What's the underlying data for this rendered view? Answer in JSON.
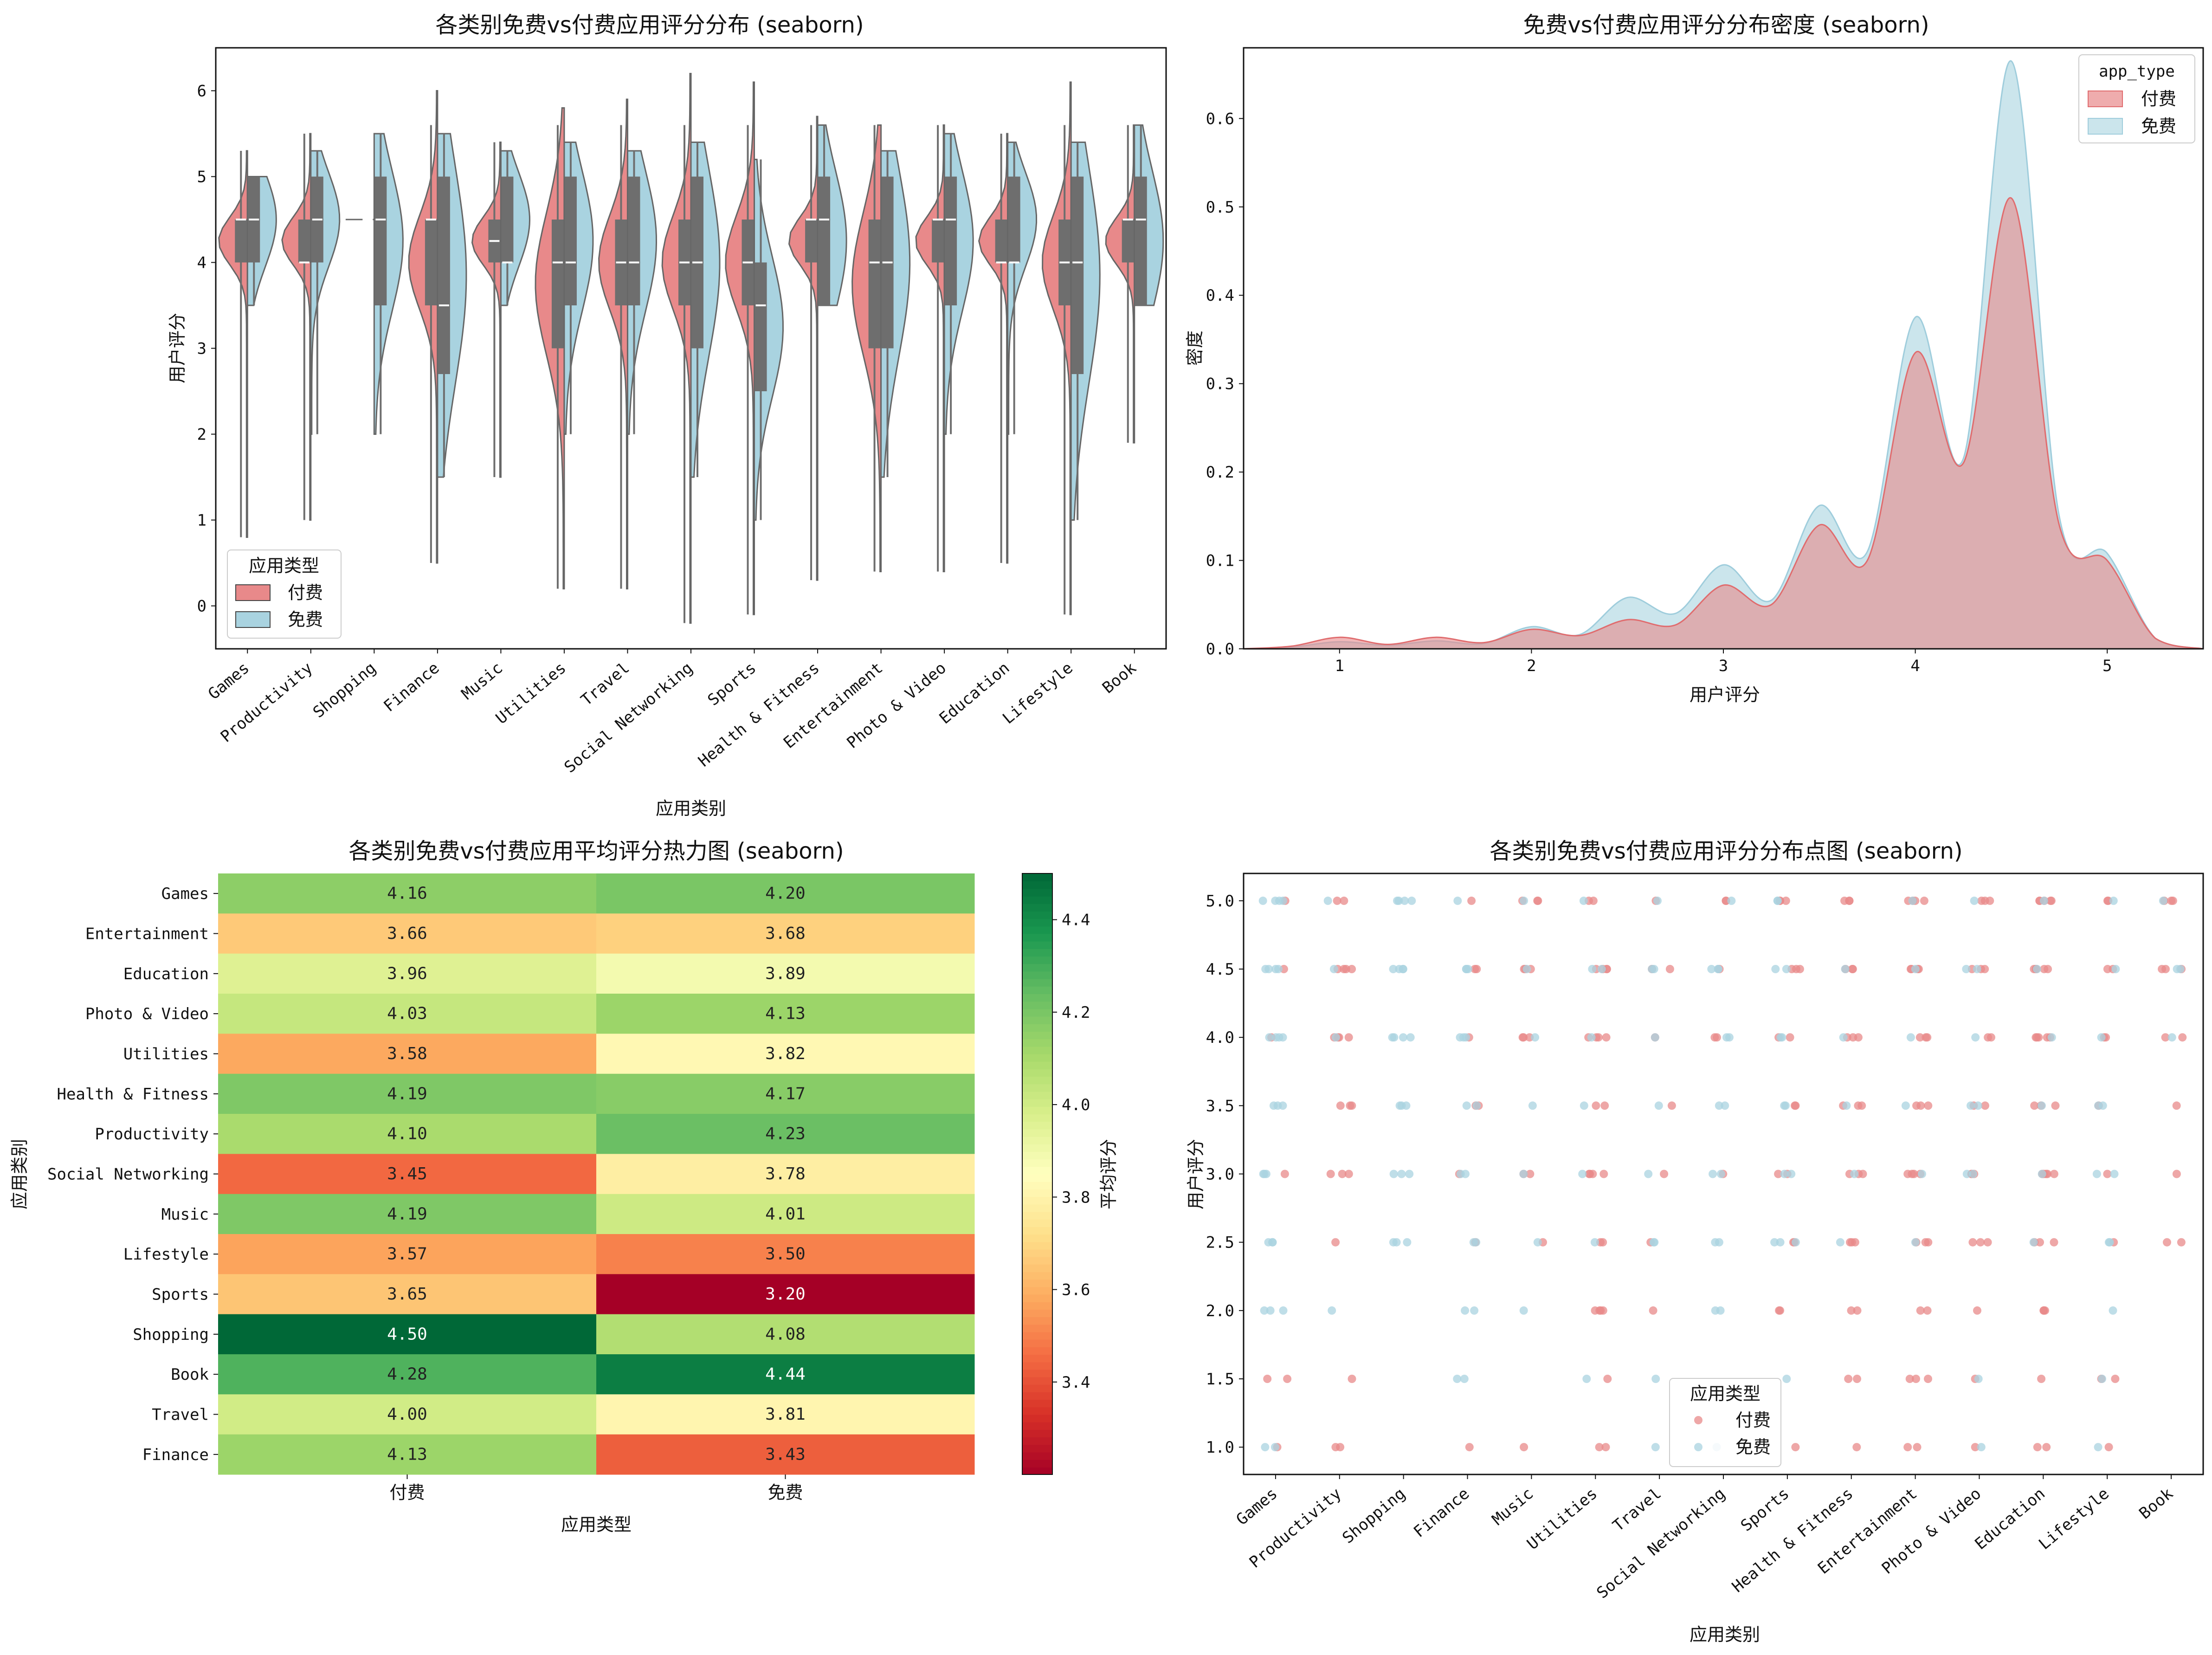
{
  "chart_data": [
    {
      "type": "violin",
      "title": "各类别免费vs付费应用评分分布 (seaborn)",
      "xlabel": "应用类别",
      "ylabel": "用户评分",
      "ylim": [
        -0.5,
        6.5
      ],
      "yticks": [
        0,
        1,
        2,
        3,
        4,
        5,
        6
      ],
      "categories": [
        "Games",
        "Productivity",
        "Shopping",
        "Finance",
        "Music",
        "Utilities",
        "Travel",
        "Social Networking",
        "Sports",
        "Health & Fitness",
        "Entertainment",
        "Photo & Video",
        "Education",
        "Lifestyle",
        "Book"
      ],
      "legend_title": "应用类型",
      "legend_position": "lower-left",
      "series": [
        {
          "name": "付费",
          "color": "#e8898a",
          "q1": [
            4.0,
            4.0,
            4.5,
            3.5,
            4.0,
            3.0,
            3.5,
            3.5,
            3.5,
            4.0,
            3.0,
            4.0,
            4.0,
            3.5,
            4.0
          ],
          "median": [
            4.5,
            4.0,
            4.5,
            4.5,
            4.25,
            4.0,
            4.0,
            4.0,
            4.0,
            4.5,
            4.0,
            4.5,
            4.0,
            4.0,
            4.5
          ],
          "q3": [
            4.5,
            4.5,
            4.5,
            4.5,
            4.5,
            4.5,
            4.5,
            4.5,
            4.5,
            4.5,
            4.5,
            4.5,
            4.5,
            4.5,
            4.5
          ],
          "min": [
            0.8,
            1.0,
            4.5,
            0.5,
            1.5,
            0.2,
            0.2,
            -0.2,
            -0.1,
            0.3,
            0.4,
            0.4,
            0.5,
            -0.1,
            1.9
          ],
          "max": [
            5.3,
            5.5,
            4.5,
            6.0,
            5.4,
            5.8,
            5.9,
            6.2,
            6.1,
            5.7,
            5.6,
            5.6,
            5.5,
            6.1,
            5.6
          ]
        },
        {
          "name": "免费",
          "color": "#a9d3e0",
          "q1": [
            4.0,
            4.0,
            3.5,
            2.7,
            4.0,
            3.5,
            3.5,
            3.0,
            2.5,
            3.5,
            3.0,
            3.5,
            4.0,
            2.7,
            3.5
          ],
          "median": [
            4.5,
            4.5,
            4.5,
            3.5,
            4.0,
            4.0,
            4.0,
            4.0,
            3.5,
            4.5,
            4.0,
            4.5,
            4.0,
            4.0,
            4.5
          ],
          "q3": [
            5.0,
            5.0,
            5.0,
            5.0,
            5.0,
            5.0,
            5.0,
            5.0,
            4.0,
            5.0,
            5.0,
            5.0,
            5.0,
            5.0,
            5.0
          ],
          "min": [
            3.5,
            2.0,
            2.0,
            1.5,
            3.5,
            2.0,
            2.0,
            1.5,
            1.0,
            3.5,
            1.5,
            2.0,
            2.0,
            1.0,
            3.5
          ],
          "max": [
            5.0,
            5.3,
            5.5,
            5.5,
            5.3,
            5.4,
            5.3,
            5.4,
            5.2,
            5.6,
            5.3,
            5.5,
            5.4,
            5.4,
            5.6
          ]
        }
      ]
    },
    {
      "type": "area",
      "title": "免费vs付费应用评分分布密度 (seaborn)",
      "xlabel": "用户评分",
      "ylabel": "密度",
      "xlim": [
        0.5,
        5.5
      ],
      "ylim": [
        0,
        0.68
      ],
      "xticks": [
        1,
        2,
        3,
        4,
        5
      ],
      "yticks": [
        0.0,
        0.1,
        0.2,
        0.3,
        0.4,
        0.5,
        0.6
      ],
      "legend_title": "app_type",
      "legend_position": "top-right",
      "x": [
        0.5,
        0.75,
        1.0,
        1.25,
        1.5,
        1.75,
        2.0,
        2.25,
        2.5,
        2.75,
        3.0,
        3.25,
        3.5,
        3.75,
        4.0,
        4.25,
        4.5,
        4.75,
        5.0,
        5.25,
        5.5
      ],
      "series": [
        {
          "name": "付费",
          "color": "#e8898a",
          "values": [
            0.0,
            0.003,
            0.013,
            0.005,
            0.013,
            0.007,
            0.022,
            0.015,
            0.033,
            0.027,
            0.072,
            0.05,
            0.14,
            0.1,
            0.335,
            0.21,
            0.51,
            0.14,
            0.1,
            0.012,
            0.0
          ]
        },
        {
          "name": "免费",
          "color": "#a9d3e0",
          "values": [
            0.0,
            0.002,
            0.008,
            0.004,
            0.009,
            0.006,
            0.025,
            0.016,
            0.058,
            0.04,
            0.095,
            0.055,
            0.162,
            0.11,
            0.375,
            0.215,
            0.665,
            0.15,
            0.108,
            0.012,
            0.0
          ]
        }
      ]
    },
    {
      "type": "heatmap",
      "title": "各类别免费vs付费应用平均评分热力图 (seaborn)",
      "xlabel": "应用类型",
      "ylabel": "应用类别",
      "columns": [
        "付费",
        "免费"
      ],
      "rows": [
        "Games",
        "Entertainment",
        "Education",
        "Photo & Video",
        "Utilities",
        "Health & Fitness",
        "Productivity",
        "Social Networking",
        "Music",
        "Lifestyle",
        "Sports",
        "Shopping",
        "Book",
        "Travel",
        "Finance"
      ],
      "values": [
        [
          4.16,
          4.2
        ],
        [
          3.66,
          3.68
        ],
        [
          3.96,
          3.89
        ],
        [
          4.03,
          4.13
        ],
        [
          3.58,
          3.82
        ],
        [
          4.19,
          4.17
        ],
        [
          4.1,
          4.23
        ],
        [
          3.45,
          3.78
        ],
        [
          4.19,
          4.01
        ],
        [
          3.57,
          3.5
        ],
        [
          3.65,
          3.2
        ],
        [
          4.5,
          4.08
        ],
        [
          4.28,
          4.44
        ],
        [
          4.0,
          3.81
        ],
        [
          4.13,
          3.43
        ]
      ],
      "labels": [
        [
          "4.16",
          "4.20"
        ],
        [
          "3.66",
          "3.68"
        ],
        [
          "3.96",
          "3.89"
        ],
        [
          "4.03",
          "4.13"
        ],
        [
          "3.58",
          "3.82"
        ],
        [
          "4.19",
          "4.17"
        ],
        [
          "4.10",
          "4.23"
        ],
        [
          "3.45",
          "3.78"
        ],
        [
          "4.19",
          "4.01"
        ],
        [
          "3.57",
          "3.50"
        ],
        [
          "3.65",
          "3.20"
        ],
        [
          "4.50",
          "4.08"
        ],
        [
          "4.28",
          "4.44"
        ],
        [
          "4.00",
          "3.81"
        ],
        [
          "4.13",
          "3.43"
        ]
      ],
      "colorbar_label": "平均评分",
      "colorbar_range": [
        3.2,
        4.5
      ],
      "colorbar_ticks": [
        "3.4",
        "3.6",
        "3.8",
        "4.0",
        "4.2",
        "4.4"
      ],
      "colormap": "RdYlGn"
    },
    {
      "type": "scatter",
      "title": "各类别免费vs付费应用评分分布点图 (seaborn)",
      "xlabel": "应用类别",
      "ylabel": "用户评分",
      "ylim": [
        0.8,
        5.2
      ],
      "yticks": [
        "1.0",
        "1.5",
        "2.0",
        "2.5",
        "3.0",
        "3.5",
        "4.0",
        "4.5",
        "5.0"
      ],
      "rating_levels": [
        1.0,
        1.5,
        2.0,
        2.5,
        3.0,
        3.5,
        4.0,
        4.5,
        5.0
      ],
      "categories": [
        "Games",
        "Productivity",
        "Shopping",
        "Finance",
        "Music",
        "Utilities",
        "Travel",
        "Social Networking",
        "Sports",
        "Health & Fitness",
        "Entertainment",
        "Photo & Video",
        "Education",
        "Lifestyle",
        "Book"
      ],
      "legend_title": "应用类型",
      "legend_position": "lower-center",
      "series": [
        {
          "name": "付费",
          "color": "#e8898a",
          "counts": [
            [
              1,
              2,
              0,
              1,
              1,
              2,
              0,
              0,
              1,
              1,
              2,
              1,
              2,
              1,
              0
            ],
            [
              2,
              1,
              0,
              0,
              0,
              1,
              0,
              0,
              0,
              2,
              3,
              1,
              1,
              2,
              0
            ],
            [
              0,
              0,
              0,
              0,
              0,
              4,
              1,
              0,
              2,
              2,
              2,
              1,
              3,
              0,
              0
            ],
            [
              0,
              1,
              0,
              1,
              1,
              2,
              1,
              0,
              2,
              3,
              3,
              3,
              3,
              1,
              2
            ],
            [
              1,
              3,
              0,
              1,
              2,
              4,
              1,
              1,
              2,
              3,
              4,
              3,
              5,
              1,
              1
            ],
            [
              0,
              3,
              0,
              2,
              0,
              2,
              1,
              0,
              2,
              3,
              3,
              2,
              3,
              1,
              1
            ],
            [
              1,
              4,
              0,
              1,
              3,
              4,
              1,
              2,
              2,
              3,
              3,
              2,
              5,
              2,
              2
            ],
            [
              1,
              4,
              0,
              2,
              3,
              4,
              2,
              1,
              3,
              3,
              4,
              3,
              5,
              2,
              3
            ],
            [
              1,
              2,
              0,
              1,
              3,
              2,
              1,
              2,
              3,
              3,
              4,
              3,
              5,
              2,
              3
            ]
          ]
        },
        {
          "name": "免费",
          "color": "#a9d3e0",
          "counts": [
            [
              2,
              0,
              0,
              0,
              0,
              0,
              1,
              1,
              0,
              0,
              0,
              1,
              0,
              1,
              0
            ],
            [
              0,
              0,
              0,
              2,
              0,
              1,
              1,
              0,
              1,
              0,
              0,
              1,
              0,
              1,
              0
            ],
            [
              3,
              1,
              0,
              2,
              1,
              0,
              0,
              2,
              0,
              0,
              0,
              0,
              0,
              1,
              0
            ],
            [
              3,
              0,
              3,
              2,
              1,
              1,
              2,
              2,
              3,
              1,
              1,
              0,
              1,
              2,
              0
            ],
            [
              3,
              0,
              3,
              2,
              1,
              1,
              1,
              2,
              2,
              1,
              1,
              2,
              1,
              2,
              0
            ],
            [
              3,
              0,
              3,
              2,
              1,
              1,
              1,
              2,
              2,
              1,
              1,
              2,
              1,
              2,
              0
            ],
            [
              4,
              1,
              4,
              3,
              1,
              1,
              1,
              2,
              2,
              1,
              1,
              1,
              1,
              1,
              1
            ],
            [
              4,
              1,
              4,
              3,
              1,
              2,
              2,
              3,
              2,
              1,
              1,
              2,
              1,
              1,
              2
            ],
            [
              4,
              1,
              4,
              1,
              1,
              1,
              1,
              1,
              2,
              0,
              1,
              1,
              1,
              1,
              1
            ]
          ]
        }
      ]
    }
  ]
}
